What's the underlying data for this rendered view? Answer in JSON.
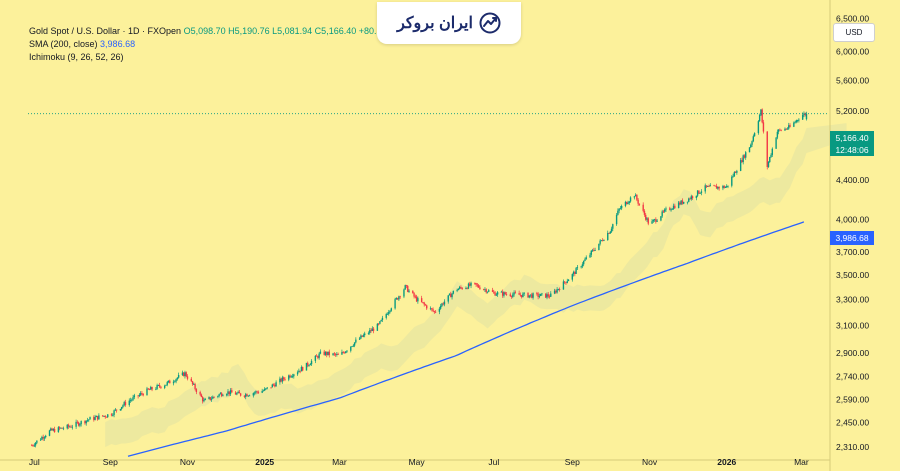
{
  "legend": {
    "instrument": "Gold Spot / U.S. Dollar · 1D · FXOpen",
    "ohlc": "O5,098.70 H5,190.76 L5,081.94 C5,166.40 +80.55",
    "sma_label": "SMA (200, close)",
    "sma_value": "3,986.68",
    "ichimoku_label": "Ichimoku (9, 26, 52, 26)"
  },
  "logo": {
    "text": "ایران بروکر",
    "icon": "trend-chart-icon"
  },
  "currency": "USD",
  "price_tag": {
    "price": "5,166.40",
    "countdown": "12:48:06"
  },
  "sma_tag": "3,986.68",
  "colors": {
    "background": "#fcf19b",
    "up": "#089981",
    "down": "#f23645",
    "sma": "#2962ff",
    "cloud": "#e8e6a0",
    "price_line": "#089981"
  },
  "chart_data": {
    "type": "line",
    "title": "Gold Spot / U.S. Dollar · 1D · FXOpen",
    "scale": "log",
    "ylim": [
      2250,
      6700
    ],
    "y_ticks": [
      2310,
      2450,
      2590,
      2740,
      2900,
      3100,
      3300,
      3500,
      3700,
      4000,
      4400,
      4800,
      5200,
      5600,
      6000,
      6500
    ],
    "x_ticks": [
      "Jul",
      "Sep",
      "Nov",
      "2025",
      "Mar",
      "May",
      "Jul",
      "Sep",
      "Nov",
      "2026",
      "Mar"
    ],
    "series": [
      {
        "name": "Gold Spot / U.S. Dollar",
        "x": [
          "2024-07-01",
          "2024-07-15",
          "2024-08-01",
          "2024-08-15",
          "2024-09-01",
          "2024-09-15",
          "2024-10-01",
          "2024-10-15",
          "2024-10-30",
          "2024-11-14",
          "2024-12-01",
          "2024-12-15",
          "2025-01-01",
          "2025-01-15",
          "2025-02-01",
          "2025-02-15",
          "2025-03-01",
          "2025-03-15",
          "2025-04-01",
          "2025-04-10",
          "2025-04-22",
          "2025-05-01",
          "2025-05-15",
          "2025-06-01",
          "2025-06-15",
          "2025-07-01",
          "2025-07-15",
          "2025-08-01",
          "2025-08-15",
          "2025-09-01",
          "2025-09-15",
          "2025-10-01",
          "2025-10-08",
          "2025-10-20",
          "2025-11-01",
          "2025-11-15",
          "2025-12-01",
          "2025-12-15",
          "2026-01-01",
          "2026-01-10",
          "2026-01-20",
          "2026-01-28",
          "2026-02-02",
          "2026-02-10",
          "2026-02-20",
          "2026-03-01",
          "2026-03-05"
        ],
        "values": [
          2320,
          2400,
          2430,
          2470,
          2500,
          2580,
          2650,
          2690,
          2760,
          2580,
          2640,
          2620,
          2650,
          2720,
          2800,
          2900,
          2880,
          2990,
          3100,
          3230,
          3400,
          3300,
          3200,
          3380,
          3420,
          3350,
          3340,
          3330,
          3330,
          3500,
          3680,
          3900,
          4100,
          4250,
          3950,
          4100,
          4200,
          4320,
          4330,
          4550,
          4800,
          5200,
          4550,
          4950,
          5000,
          5150,
          5166.4
        ]
      },
      {
        "name": "SMA (200, close)",
        "x": [
          "2024-09-15",
          "2024-12-01",
          "2025-03-01",
          "2025-06-01",
          "2025-09-01",
          "2025-12-01",
          "2026-03-05"
        ],
        "values": [
          2260,
          2400,
          2600,
          2880,
          3250,
          3600,
          3986.68
        ]
      }
    ]
  }
}
